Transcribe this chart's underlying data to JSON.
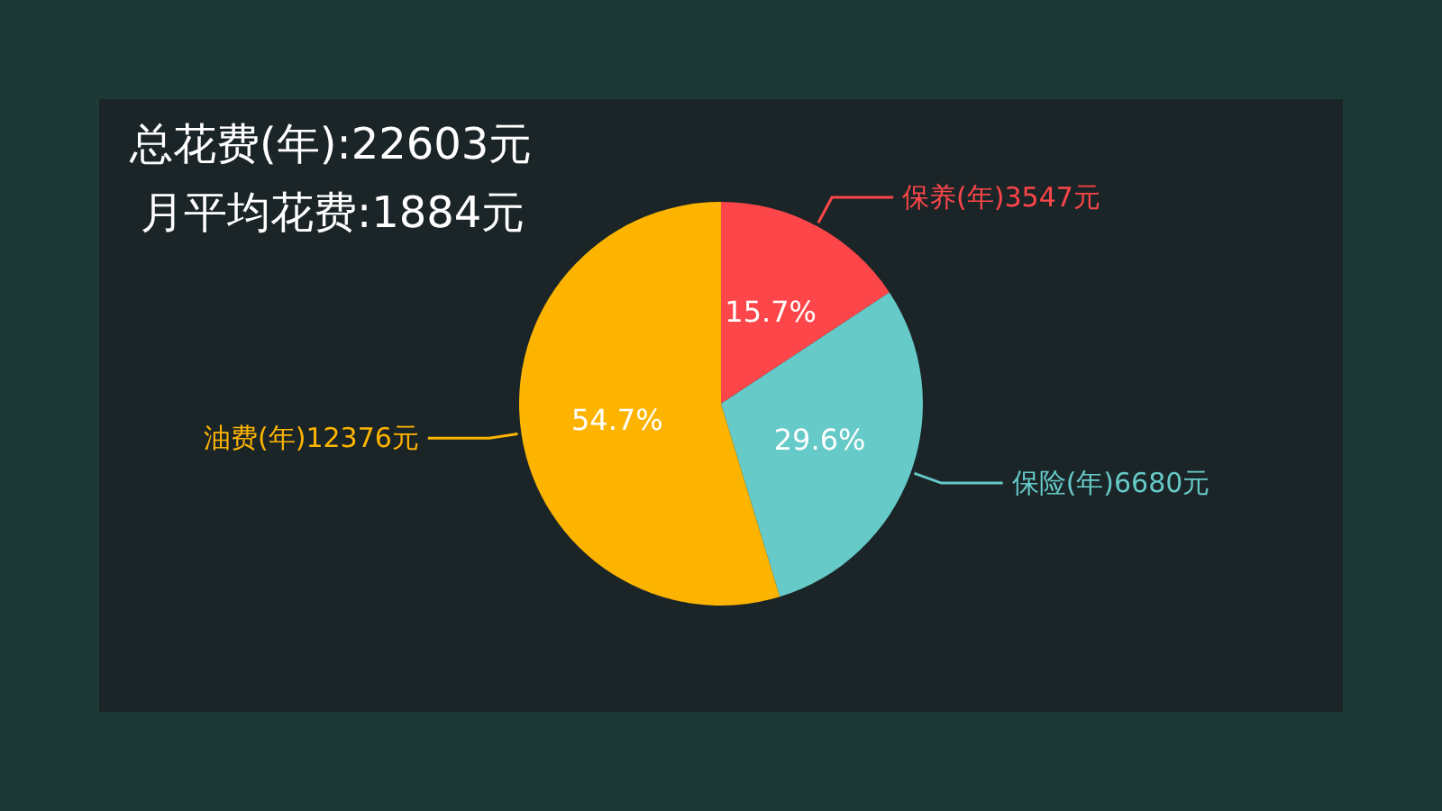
{
  "chart_data": {
    "type": "pie",
    "title": "总花费(年):22603元",
    "subtitle": "月平均花费:1884元",
    "categories": [
      "保养(年)3547元",
      "保险(年)6680元",
      "油费(年)12376元"
    ],
    "values": [
      15.7,
      29.6,
      54.7
    ],
    "colors": [
      "#fc4649",
      "#66cac8",
      "#fdb400"
    ],
    "value_labels": [
      "15.7%",
      "29.6%",
      "54.7%"
    ]
  }
}
